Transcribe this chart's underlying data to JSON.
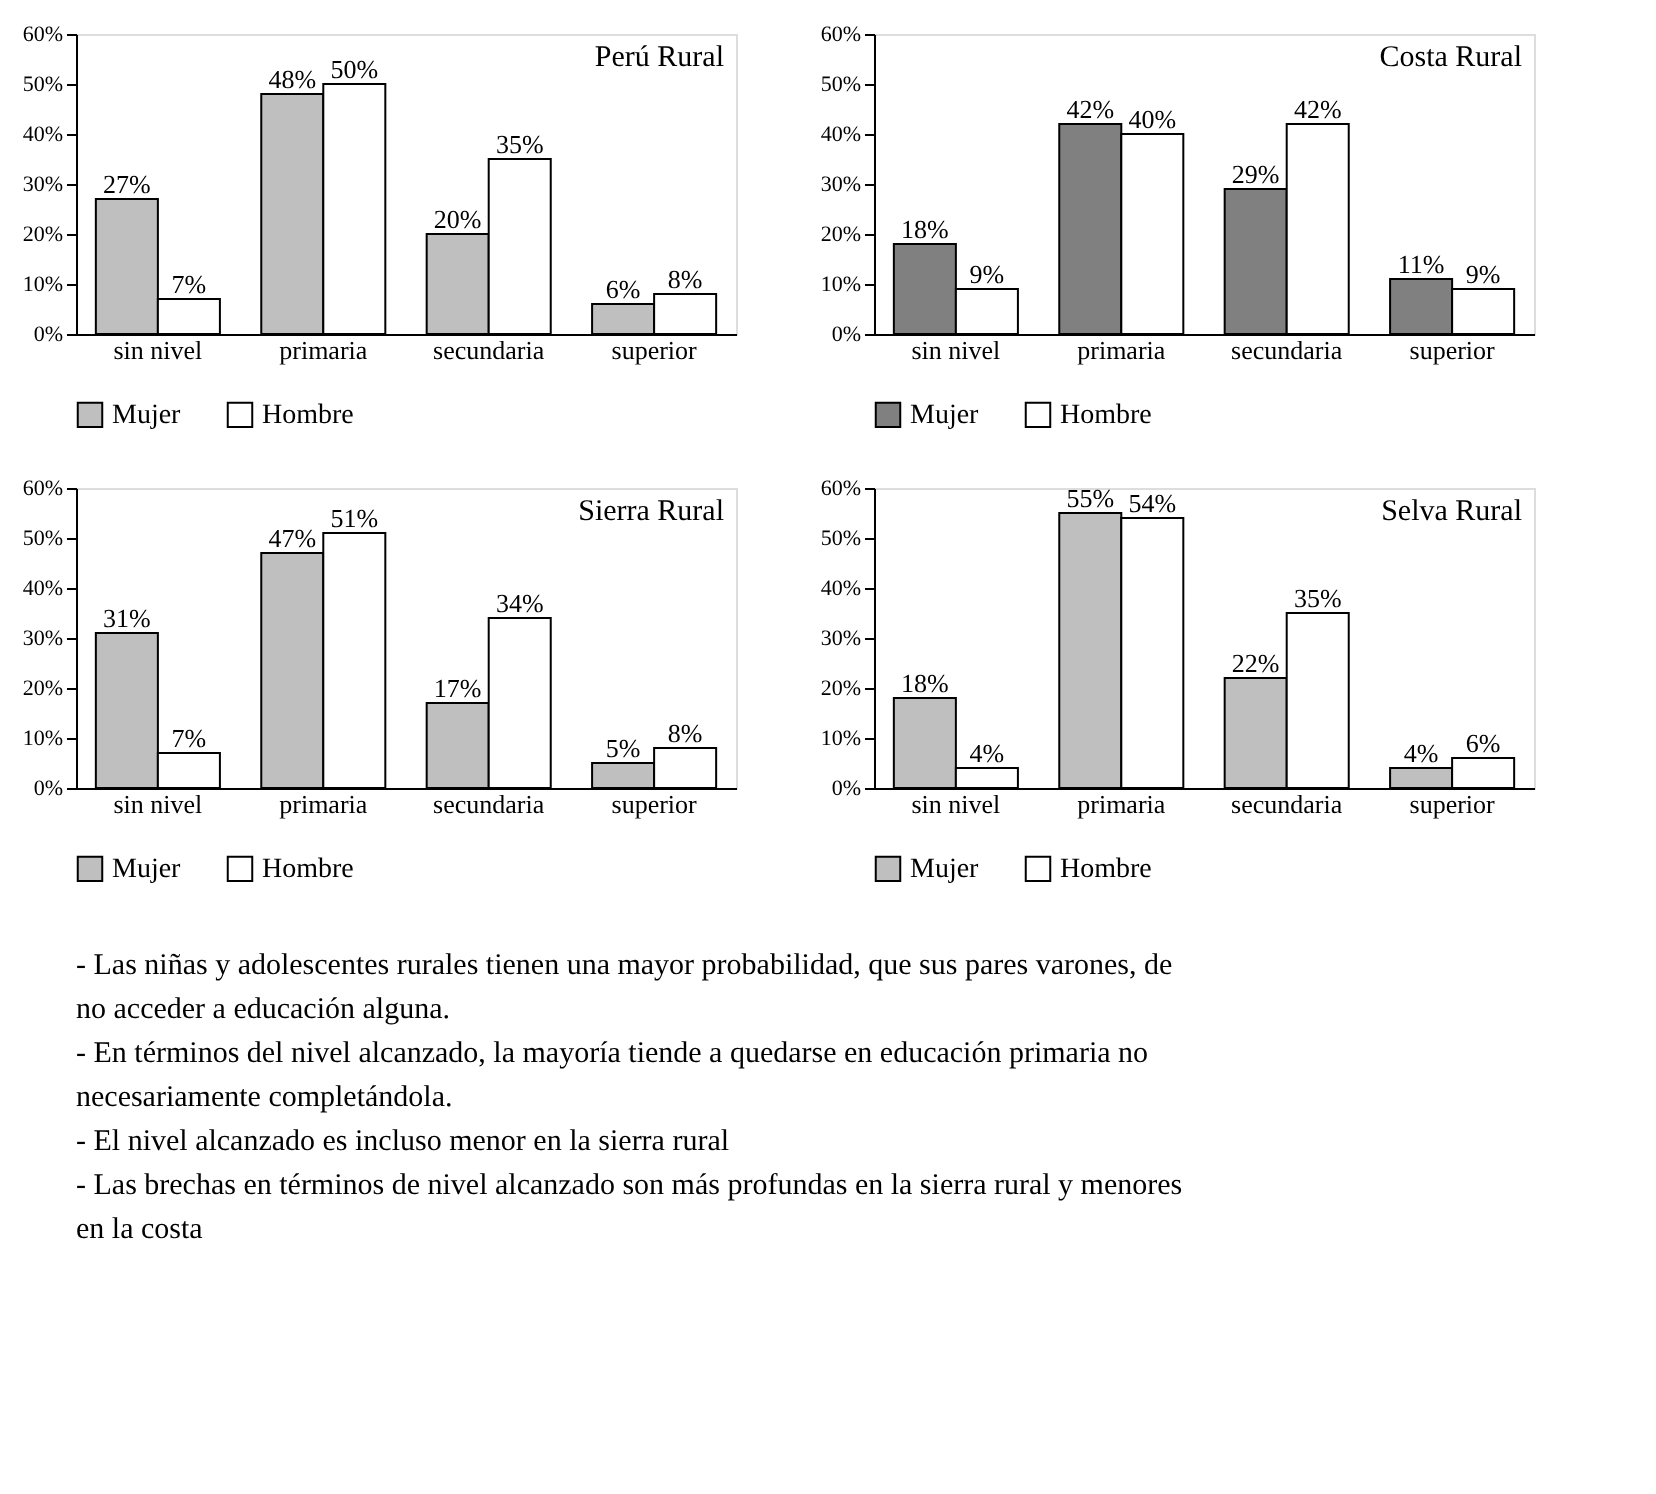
{
  "chart_data": [
    {
      "type": "bar",
      "title": "Perú Rural",
      "categories": [
        "sin nivel",
        "primaria",
        "secundaria",
        "superior"
      ],
      "ylim": [
        0,
        60
      ],
      "yticks": [
        {
          "value": 0,
          "label": "0%"
        },
        {
          "value": 10,
          "label": "10%"
        },
        {
          "value": 20,
          "label": "20%"
        },
        {
          "value": 30,
          "label": "30%"
        },
        {
          "value": 40,
          "label": "40%"
        },
        {
          "value": 50,
          "label": "50%"
        },
        {
          "value": 60,
          "label": "60%"
        }
      ],
      "legend": "bottom",
      "grid": false,
      "series": [
        {
          "name": "Mujer",
          "color": "#bfbfbf",
          "values": [
            27,
            48,
            20,
            6
          ],
          "value_labels": [
            "27%",
            "48%",
            "20%",
            "6%"
          ]
        },
        {
          "name": "Hombre",
          "color": "#ffffff",
          "values": [
            7,
            50,
            35,
            8
          ],
          "value_labels": [
            "7%",
            "50%",
            "35%",
            "8%"
          ]
        }
      ]
    },
    {
      "type": "bar",
      "title": "Costa Rural",
      "categories": [
        "sin nivel",
        "primaria",
        "secundaria",
        "superior"
      ],
      "ylim": [
        0,
        60
      ],
      "yticks": [
        {
          "value": 0,
          "label": "0%"
        },
        {
          "value": 10,
          "label": "10%"
        },
        {
          "value": 20,
          "label": "20%"
        },
        {
          "value": 30,
          "label": "30%"
        },
        {
          "value": 40,
          "label": "40%"
        },
        {
          "value": 50,
          "label": "50%"
        },
        {
          "value": 60,
          "label": "60%"
        }
      ],
      "legend": "bottom",
      "grid": false,
      "series": [
        {
          "name": "Mujer",
          "color": "#808080",
          "values": [
            18,
            42,
            29,
            11
          ],
          "value_labels": [
            "18%",
            "42%",
            "29%",
            "11%"
          ]
        },
        {
          "name": "Hombre",
          "color": "#ffffff",
          "values": [
            9,
            40,
            42,
            9
          ],
          "value_labels": [
            "9%",
            "40%",
            "42%",
            "9%"
          ]
        }
      ]
    },
    {
      "type": "bar",
      "title": "Sierra Rural",
      "categories": [
        "sin nivel",
        "primaria",
        "secundaria",
        "superior"
      ],
      "ylim": [
        0,
        60
      ],
      "yticks": [
        {
          "value": 0,
          "label": "0%"
        },
        {
          "value": 10,
          "label": "10%"
        },
        {
          "value": 20,
          "label": "20%"
        },
        {
          "value": 30,
          "label": "30%"
        },
        {
          "value": 40,
          "label": "40%"
        },
        {
          "value": 50,
          "label": "50%"
        },
        {
          "value": 60,
          "label": "60%"
        }
      ],
      "legend": "bottom",
      "grid": false,
      "series": [
        {
          "name": "Mujer",
          "color": "#bfbfbf",
          "values": [
            31,
            47,
            17,
            5
          ],
          "value_labels": [
            "31%",
            "47%",
            "17%",
            "5%"
          ]
        },
        {
          "name": "Hombre",
          "color": "#ffffff",
          "values": [
            7,
            51,
            34,
            8
          ],
          "value_labels": [
            "7%",
            "51%",
            "34%",
            "8%"
          ]
        }
      ]
    },
    {
      "type": "bar",
      "title": "Selva Rural",
      "categories": [
        "sin nivel",
        "primaria",
        "secundaria",
        "superior"
      ],
      "ylim": [
        0,
        60
      ],
      "yticks": [
        {
          "value": 0,
          "label": "0%"
        },
        {
          "value": 10,
          "label": "10%"
        },
        {
          "value": 20,
          "label": "20%"
        },
        {
          "value": 30,
          "label": "30%"
        },
        {
          "value": 40,
          "label": "40%"
        },
        {
          "value": 50,
          "label": "50%"
        },
        {
          "value": 60,
          "label": "60%"
        }
      ],
      "legend": "bottom",
      "grid": false,
      "series": [
        {
          "name": "Mujer",
          "color": "#bfbfbf",
          "values": [
            18,
            55,
            22,
            4
          ],
          "value_labels": [
            "18%",
            "55%",
            "22%",
            "4%"
          ]
        },
        {
          "name": "Hombre",
          "color": "#ffffff",
          "values": [
            4,
            54,
            35,
            6
          ],
          "value_labels": [
            "4%",
            "54%",
            "35%",
            "6%"
          ]
        }
      ]
    },
    {
      "type": "other",
      "annotations": [
        "- Las niñas y adolescentes rurales tienen una mayor probabilidad, que sus pares varones, de no acceder a educación alguna.",
        "- En términos del nivel alcanzado, la mayoría tiende a quedarse en educación primaria no necesariamente completándola.",
        "- El nivel alcanzado es incluso menor en la sierra rural",
        "- Las brechas en términos de nivel alcanzado son más profundas en la sierra rural y menores en la costa"
      ]
    }
  ]
}
